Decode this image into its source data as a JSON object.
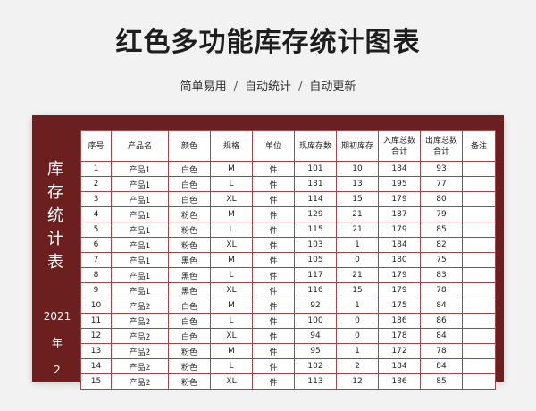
{
  "title": "红色多功能库存统计图表",
  "subtitle": [
    "简单易用",
    "自动统计",
    "自动更新"
  ],
  "sidebar": {
    "title_chars": [
      "库",
      "存",
      "统",
      "计",
      "表"
    ],
    "year": "2021",
    "year_suffix": "年",
    "month": "2"
  },
  "columns": [
    "序号",
    "产品名",
    "颜色",
    "规格",
    "单位",
    "现库存数",
    "期初库存",
    "入库总数合计",
    "出库总数合计",
    "备注"
  ],
  "rows": [
    [
      "1",
      "产品1",
      "白色",
      "M",
      "件",
      "101",
      "10",
      "184",
      "93",
      ""
    ],
    [
      "2",
      "产品1",
      "白色",
      "L",
      "件",
      "131",
      "13",
      "195",
      "77",
      ""
    ],
    [
      "3",
      "产品1",
      "白色",
      "XL",
      "件",
      "114",
      "15",
      "179",
      "80",
      ""
    ],
    [
      "4",
      "产品1",
      "粉色",
      "M",
      "件",
      "129",
      "21",
      "187",
      "79",
      ""
    ],
    [
      "5",
      "产品1",
      "粉色",
      "L",
      "件",
      "115",
      "21",
      "179",
      "85",
      ""
    ],
    [
      "6",
      "产品1",
      "粉色",
      "XL",
      "件",
      "103",
      "1",
      "184",
      "82",
      ""
    ],
    [
      "7",
      "产品1",
      "黑色",
      "M",
      "件",
      "105",
      "0",
      "180",
      "75",
      ""
    ],
    [
      "8",
      "产品1",
      "黑色",
      "L",
      "件",
      "117",
      "21",
      "179",
      "83",
      ""
    ],
    [
      "9",
      "产品1",
      "黑色",
      "XL",
      "件",
      "116",
      "15",
      "179",
      "78",
      ""
    ],
    [
      "10",
      "产品2",
      "白色",
      "M",
      "件",
      "92",
      "1",
      "175",
      "84",
      ""
    ],
    [
      "11",
      "产品2",
      "白色",
      "L",
      "件",
      "100",
      "0",
      "186",
      "86",
      ""
    ],
    [
      "12",
      "产品2",
      "白色",
      "XL",
      "件",
      "94",
      "0",
      "178",
      "84",
      ""
    ],
    [
      "13",
      "产品2",
      "粉色",
      "M",
      "件",
      "95",
      "1",
      "172",
      "78",
      ""
    ],
    [
      "14",
      "产品2",
      "粉色",
      "L",
      "件",
      "102",
      "2",
      "184",
      "84",
      ""
    ],
    [
      "15",
      "产品2",
      "粉色",
      "XL",
      "件",
      "113",
      "12",
      "186",
      "85",
      ""
    ]
  ],
  "colors": {
    "frame": "#6b1f1f",
    "border": "#9a4b4b",
    "background": "#f2f2f2"
  }
}
